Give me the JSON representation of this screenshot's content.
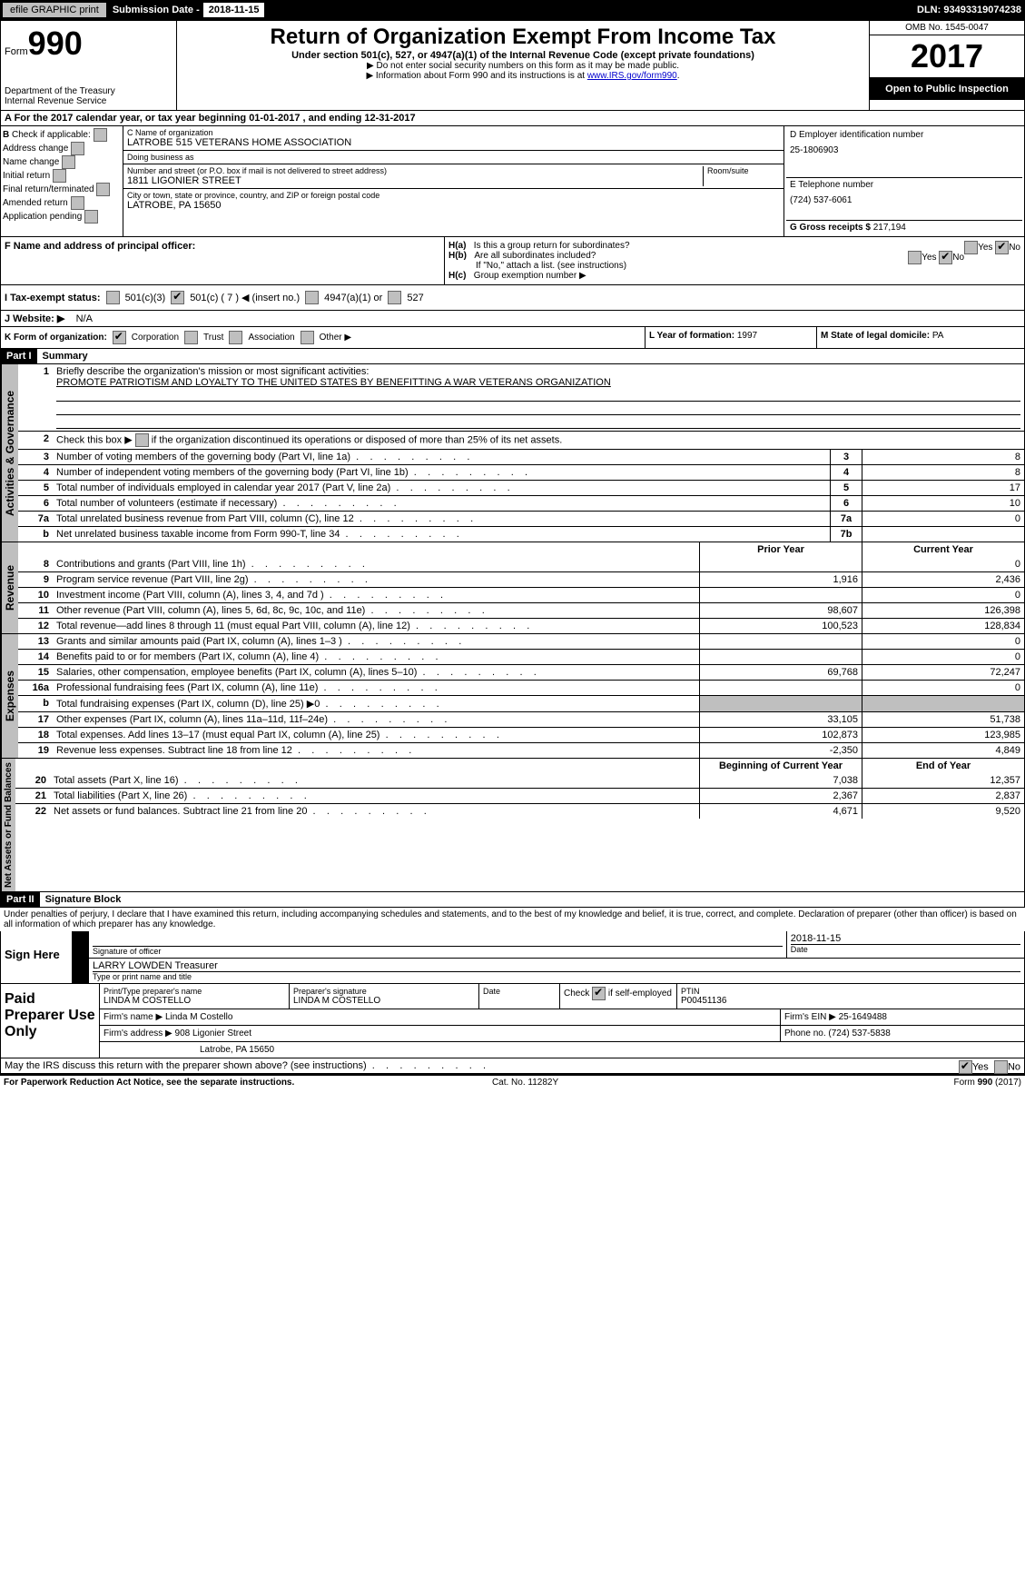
{
  "topbar": {
    "efile": "efile GRAPHIC print",
    "subdate_lbl": "Submission Date - ",
    "subdate": "2018-11-15",
    "dln_lbl": "DLN: ",
    "dln": "93493319074238"
  },
  "hdr": {
    "form": "Form",
    "num": "990",
    "dept": "Department of the Treasury",
    "irs": "Internal Revenue Service",
    "title": "Return of Organization Exempt From Income Tax",
    "sub1": "Under section 501(c), 527, or 4947(a)(1) of the Internal Revenue Code (except private foundations)",
    "sub2": "▶ Do not enter social security numbers on this form as it may be made public.",
    "sub3a": "▶ Information about Form 990 and its instructions is at ",
    "sub3b": "www.IRS.gov/form990",
    "omb": "OMB No. 1545-0047",
    "year": "2017",
    "open": "Open to Public Inspection"
  },
  "A": {
    "text": "A   For the 2017 calendar year, or tax year beginning 01-01-2017       , and ending 12-31-2017"
  },
  "B": {
    "hdr": "B",
    "check": "Check if applicable:",
    "items": [
      "Address change",
      "Name change",
      "Initial return",
      "Final return/terminated",
      "Amended return",
      "Application pending"
    ]
  },
  "C": {
    "name_lbl": "C Name of organization",
    "name": "LATROBE 515 VETERANS HOME ASSOCIATION",
    "dba_lbl": "Doing business as",
    "dba": "",
    "street_lbl": "Number and street (or P.O. box if mail is not delivered to street address)",
    "street": "1811 LIGONIER STREET",
    "room_lbl": "Room/suite",
    "city_lbl": "City or town, state or province, country, and ZIP or foreign postal code",
    "city": "LATROBE, PA  15650"
  },
  "D": {
    "lbl": "D Employer identification number",
    "val": "25-1806903"
  },
  "E": {
    "lbl": "E Telephone number",
    "val": "(724) 537-6061"
  },
  "G": {
    "lbl": "G Gross receipts $ ",
    "val": "217,194"
  },
  "F": {
    "lbl": "F Name and address of principal officer:",
    "val": ""
  },
  "H": {
    "a": "Is this a group return for subordinates?",
    "a_yes": "Yes",
    "a_no": "No",
    "b": "Are all subordinates included?",
    "b_yes": "Yes",
    "b_no": "No",
    "b2": "If \"No,\" attach a list. (see instructions)",
    "c": "Group exemption number ▶"
  },
  "I": {
    "lbl": "I    Tax-exempt status:",
    "c3": "501(c)(3)",
    "c": "501(c) ( 7 ) ◀ (insert no.)",
    "a1": "4947(a)(1) or",
    "s527": "527"
  },
  "J": {
    "lbl": "J   Website: ▶",
    "val": "N/A"
  },
  "K": {
    "lbl": "K Form of organization:",
    "corp": "Corporation",
    "trust": "Trust",
    "assoc": "Association",
    "other": "Other ▶"
  },
  "L": {
    "lbl": "L Year of formation: ",
    "val": "1997"
  },
  "M": {
    "lbl": "M State of legal domicile: ",
    "val": "PA"
  },
  "parts": {
    "p1": "Part I",
    "p1t": "Summary",
    "p2": "Part II",
    "p2t": "Signature Block"
  },
  "vlabels": {
    "act": "Activities & Governance",
    "rev": "Revenue",
    "exp": "Expenses",
    "net": "Net Assets or Fund Balances"
  },
  "summary": {
    "l1": "Briefly describe the organization's mission or most significant activities:",
    "l1v": "PROMOTE PATRIOTISM AND LOYALTY TO THE UNITED STATES BY BENEFITTING A WAR VETERANS ORGANIZATION",
    "l2": "Check this box ▶         if the organization discontinued its operations or disposed of more than 25% of its net assets.",
    "l3": "Number of voting members of the governing body (Part VI, line 1a)",
    "l3n": "3",
    "l3v": "8",
    "l4": "Number of independent voting members of the governing body (Part VI, line 1b)",
    "l4n": "4",
    "l4v": "8",
    "l5": "Total number of individuals employed in calendar year 2017 (Part V, line 2a)",
    "l5n": "5",
    "l5v": "17",
    "l6": "Total number of volunteers (estimate if necessary)",
    "l6n": "6",
    "l6v": "10",
    "l7a": "Total unrelated business revenue from Part VIII, column (C), line 12",
    "l7an": "7a",
    "l7av": "0",
    "l7b": "Net unrelated business taxable income from Form 990-T, line 34",
    "l7bn": "7b",
    "l7bv": "",
    "hdrs": {
      "prior": "Prior Year",
      "curr": "Current Year",
      "beg": "Beginning of Current Year",
      "end": "End of Year"
    },
    "rev": [
      {
        "n": "8",
        "t": "Contributions and grants (Part VIII, line 1h)",
        "p": "",
        "c": "0"
      },
      {
        "n": "9",
        "t": "Program service revenue (Part VIII, line 2g)",
        "p": "1,916",
        "c": "2,436"
      },
      {
        "n": "10",
        "t": "Investment income (Part VIII, column (A), lines 3, 4, and 7d )",
        "p": "",
        "c": "0"
      },
      {
        "n": "11",
        "t": "Other revenue (Part VIII, column (A), lines 5, 6d, 8c, 9c, 10c, and 11e)",
        "p": "98,607",
        "c": "126,398"
      },
      {
        "n": "12",
        "t": "Total revenue—add lines 8 through 11 (must equal Part VIII, column (A), line 12)",
        "p": "100,523",
        "c": "128,834"
      }
    ],
    "exp": [
      {
        "n": "13",
        "t": "Grants and similar amounts paid (Part IX, column (A), lines 1–3 )",
        "p": "",
        "c": "0"
      },
      {
        "n": "14",
        "t": "Benefits paid to or for members (Part IX, column (A), line 4)",
        "p": "",
        "c": "0"
      },
      {
        "n": "15",
        "t": "Salaries, other compensation, employee benefits (Part IX, column (A), lines 5–10)",
        "p": "69,768",
        "c": "72,247"
      },
      {
        "n": "16a",
        "t": "Professional fundraising fees (Part IX, column (A), line 11e)",
        "p": "",
        "c": "0"
      },
      {
        "n": "b",
        "t": "Total fundraising expenses (Part IX, column (D), line 25) ▶0",
        "p": "SHADE",
        "c": "SHADE"
      },
      {
        "n": "17",
        "t": "Other expenses (Part IX, column (A), lines 11a–11d, 11f–24e)",
        "p": "33,105",
        "c": "51,738"
      },
      {
        "n": "18",
        "t": "Total expenses. Add lines 13–17 (must equal Part IX, column (A), line 25)",
        "p": "102,873",
        "c": "123,985"
      },
      {
        "n": "19",
        "t": "Revenue less expenses. Subtract line 18 from line 12",
        "p": "-2,350",
        "c": "4,849"
      }
    ],
    "net": [
      {
        "n": "20",
        "t": "Total assets (Part X, line 16)",
        "p": "7,038",
        "c": "12,357"
      },
      {
        "n": "21",
        "t": "Total liabilities (Part X, line 26)",
        "p": "2,367",
        "c": "2,837"
      },
      {
        "n": "22",
        "t": "Net assets or fund balances. Subtract line 21 from line 20",
        "p": "4,671",
        "c": "9,520"
      }
    ]
  },
  "sig": {
    "decl": "Under penalties of perjury, I declare that I have examined this return, including accompanying schedules and statements, and to the best of my knowledge and belief, it is true, correct, and complete. Declaration of preparer (other than officer) is based on all information of which preparer has any knowledge.",
    "here": "Sign Here",
    "sig_of": "Signature of officer",
    "date_lbl": "Date",
    "date": "2018-11-15",
    "name_val": "LARRY LOWDEN  Treasurer",
    "name_lbl": "Type or print name and title"
  },
  "prep": {
    "hdr": "Paid Preparer Use Only",
    "r1": {
      "a_lbl": "Print/Type preparer's name",
      "a": "LINDA M COSTELLO",
      "b_lbl": "Preparer's signature",
      "b": "LINDA M COSTELLO",
      "c_lbl": "Date",
      "d1": "Check",
      "d2": "if self-employed",
      "e_lbl": "PTIN",
      "e": "P00451136"
    },
    "r2": {
      "a_lbl": "Firm's name     ▶ ",
      "a": "Linda M Costello",
      "b_lbl": "Firm's EIN ▶ ",
      "b": "25-1649488"
    },
    "r3": {
      "a_lbl": "Firm's address ▶ ",
      "a": "908 Ligonier Street",
      "b_lbl": "Phone no. ",
      "b": "(724) 537-5838"
    },
    "r4": {
      "a": "Latrobe, PA  15650"
    }
  },
  "discuss": {
    "t": "May the IRS discuss this return with the preparer shown above? (see instructions)",
    "yes": "Yes",
    "no": "No"
  },
  "foot": {
    "l": "For Paperwork Reduction Act Notice, see the separate instructions.",
    "c": "Cat. No. 11282Y",
    "r": "Form 990 (2017)"
  }
}
